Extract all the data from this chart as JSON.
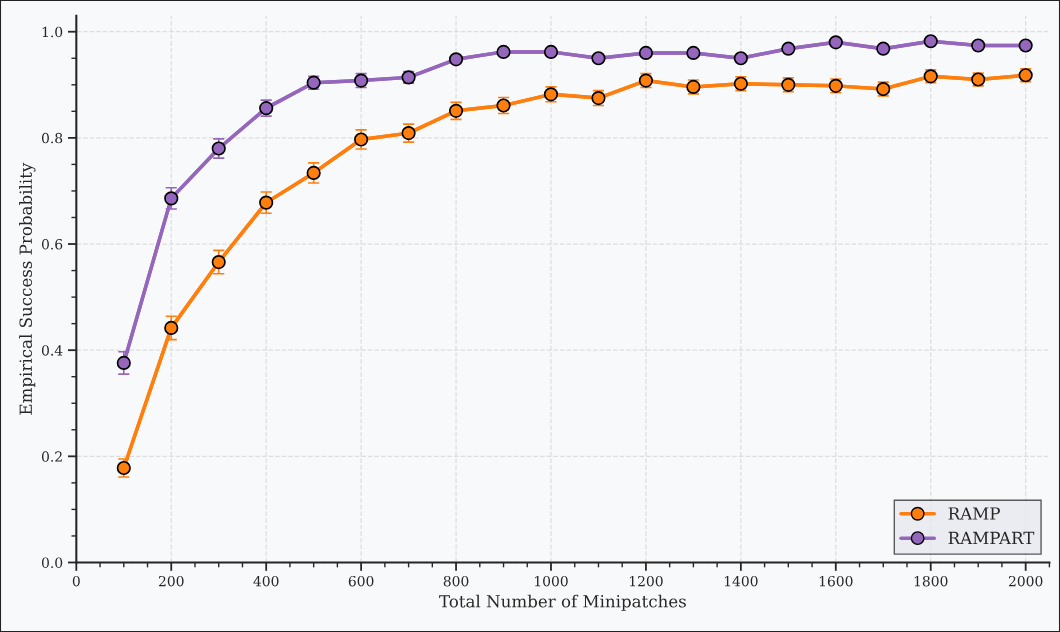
{
  "chart_data": {
    "type": "line",
    "xlabel": "Total Number of Minipatches",
    "ylabel": "Empirical Success Probability",
    "x": [
      100,
      200,
      300,
      400,
      500,
      600,
      700,
      800,
      900,
      1000,
      1100,
      1200,
      1300,
      1400,
      1500,
      1600,
      1700,
      1800,
      1900,
      2000
    ],
    "series": [
      {
        "name": "RAMP",
        "color": "#ff7f0e",
        "values": [
          0.178,
          0.442,
          0.566,
          0.678,
          0.734,
          0.797,
          0.809,
          0.851,
          0.861,
          0.882,
          0.875,
          0.908,
          0.896,
          0.902,
          0.9,
          0.898,
          0.892,
          0.916,
          0.91,
          0.918
        ],
        "errors": [
          0.017,
          0.022,
          0.022,
          0.02,
          0.019,
          0.018,
          0.017,
          0.016,
          0.015,
          0.014,
          0.014,
          0.013,
          0.013,
          0.013,
          0.013,
          0.013,
          0.013,
          0.012,
          0.012,
          0.012
        ]
      },
      {
        "name": "RAMPART",
        "color": "#9467bd",
        "values": [
          0.376,
          0.686,
          0.78,
          0.856,
          0.904,
          0.908,
          0.914,
          0.948,
          0.962,
          0.962,
          0.95,
          0.96,
          0.96,
          0.95,
          0.968,
          0.98,
          0.968,
          0.982,
          0.974,
          0.974
        ],
        "errors": [
          0.021,
          0.02,
          0.018,
          0.015,
          0.012,
          0.013,
          0.011,
          0.006,
          0.005,
          0.005,
          0.006,
          0.005,
          0.005,
          0.006,
          0.005,
          0.004,
          0.005,
          0.004,
          0.005,
          0.005
        ]
      }
    ],
    "xlim": [
      0,
      2050
    ],
    "xticks": [
      0,
      200,
      400,
      600,
      800,
      1000,
      1200,
      1400,
      1600,
      1800,
      2000
    ],
    "ylim": [
      0,
      1.03
    ],
    "yticks": [
      {
        "value": 0,
        "label": "0.0"
      },
      0.2,
      0.4,
      0.6,
      0.8,
      {
        "value": 1,
        "label": "1.0"
      }
    ],
    "grid": true,
    "legend": "bottom right",
    "marker": "circle",
    "line_style": "solid"
  }
}
